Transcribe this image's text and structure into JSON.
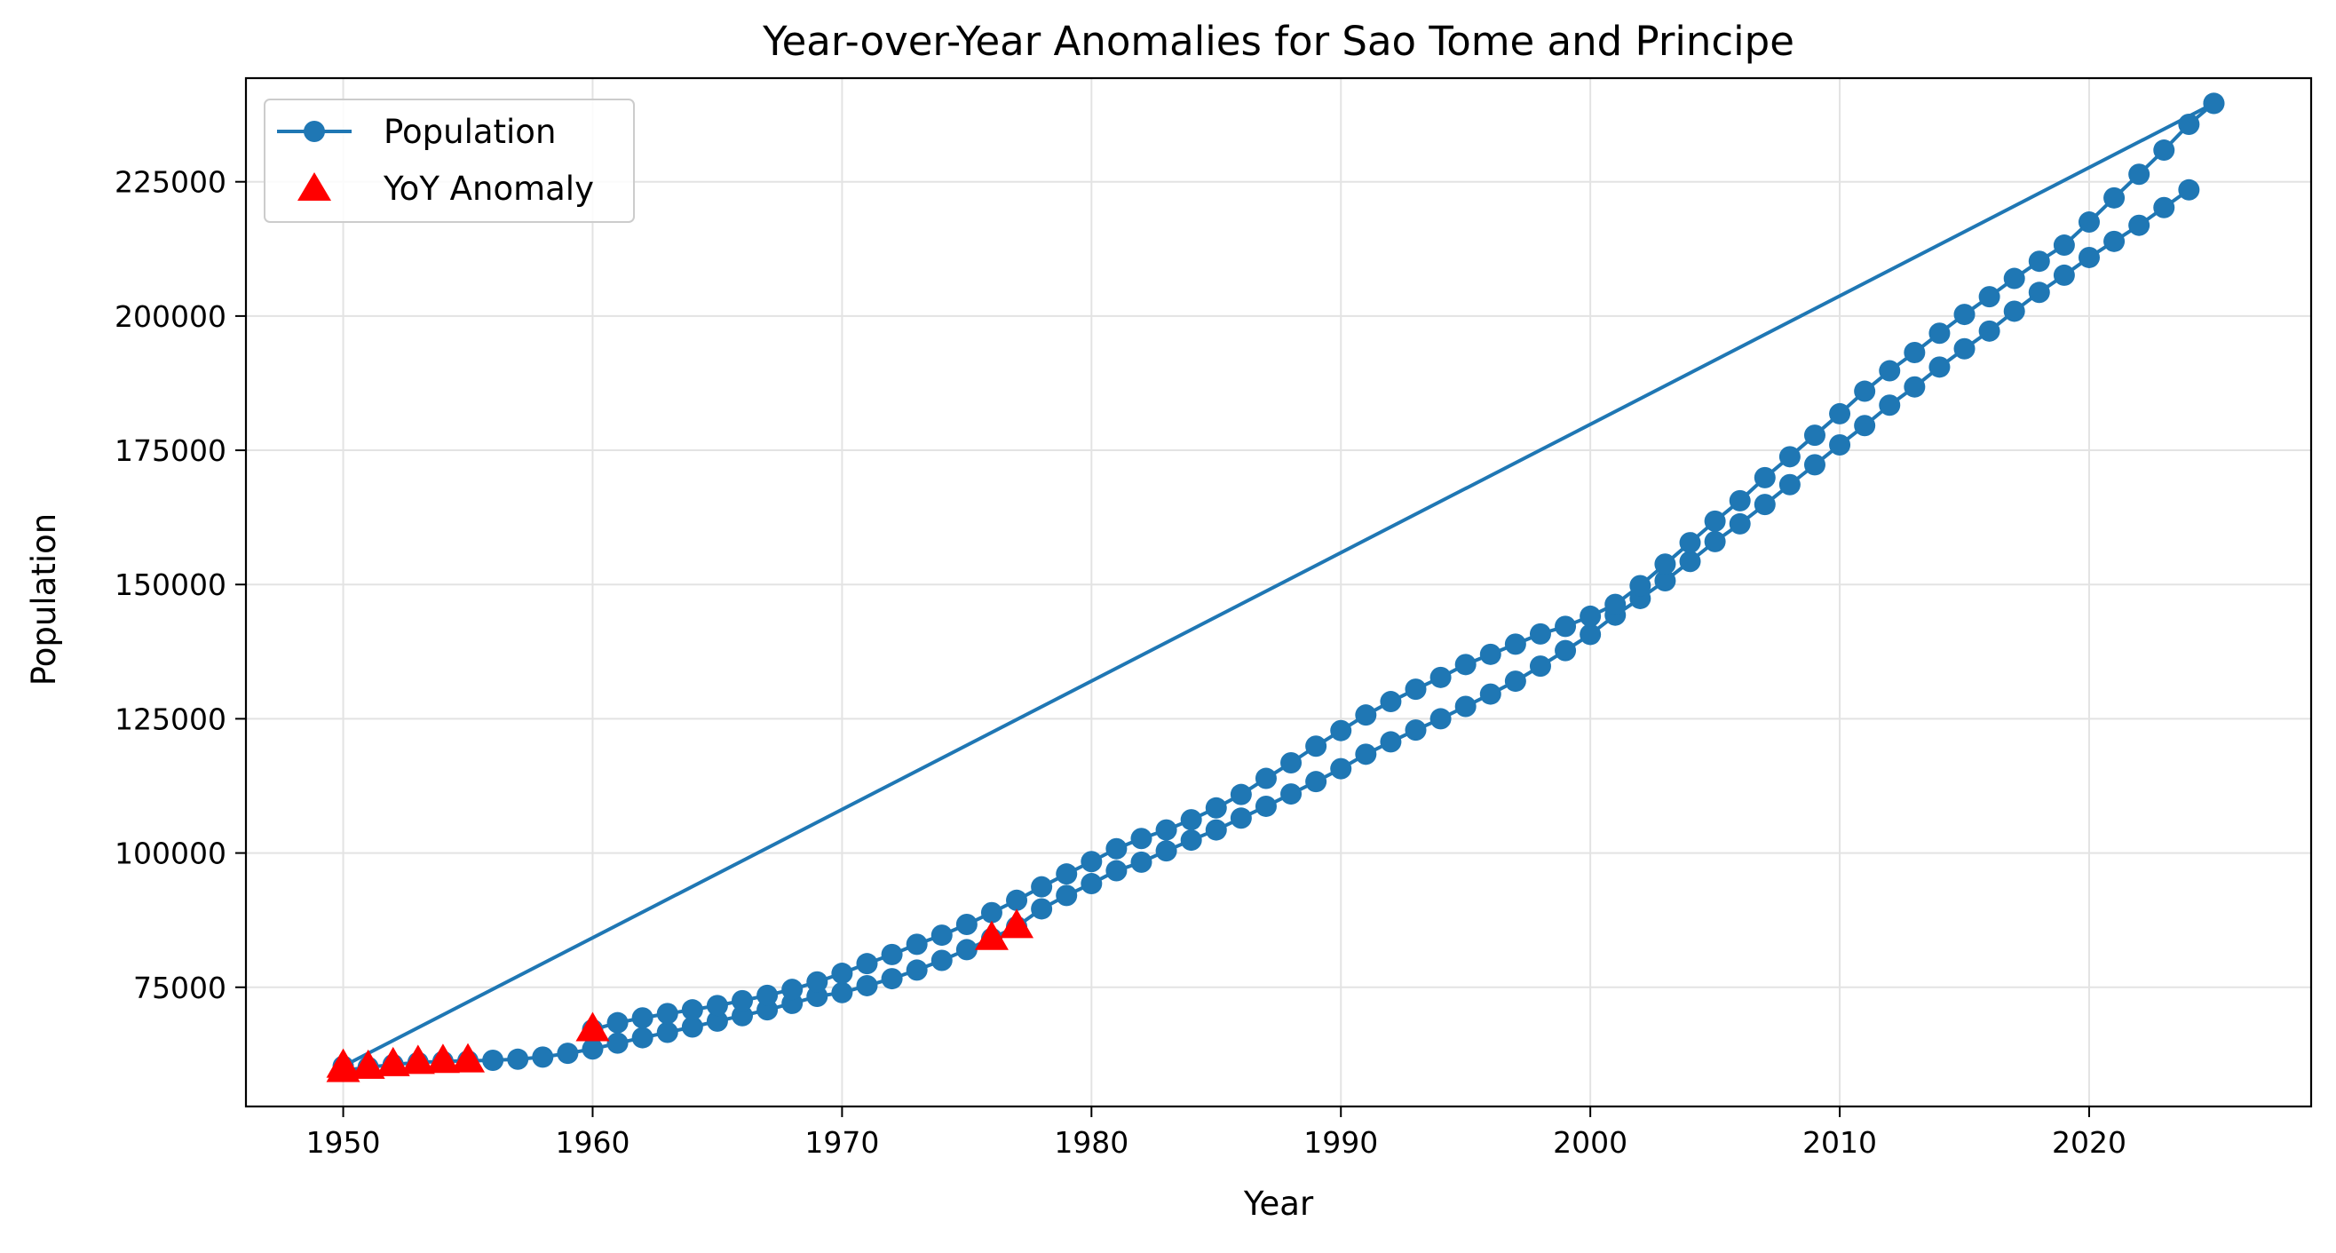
{
  "chart_data": {
    "type": "line",
    "title": "Year-over-Year Anomalies for Sao Tome and Principe",
    "xlabel": "Year",
    "ylabel": "Population",
    "xlim": [
      1946.1,
      2028.9
    ],
    "ylim": [
      52800,
      244300
    ],
    "xticks": [
      1950,
      1960,
      1970,
      1980,
      1990,
      2000,
      2010,
      2020
    ],
    "yticks": [
      75000,
      100000,
      125000,
      150000,
      175000,
      200000,
      225000
    ],
    "grid": true,
    "legend": {
      "placement": "top-left",
      "entries": [
        "Population",
        "YoY Anomaly"
      ]
    },
    "colors": {
      "line": "#1f77b4",
      "anomaly": "#ff0000"
    },
    "series": [
      {
        "name": "Population",
        "marker": "circle",
        "segments": [
          {
            "x": [
              1950,
              1951,
              1952,
              1953,
              1954,
              1955,
              1956,
              1957,
              1958,
              1959,
              1960,
              1961,
              1962,
              1963,
              1964,
              1965,
              1966,
              1967,
              1968,
              1969,
              1970,
              1971,
              1972,
              1973,
              1974,
              1975,
              1976,
              1977,
              1978,
              1979,
              1980,
              1981,
              1982,
              1983,
              1984,
              1985,
              1986,
              1987,
              1988,
              1989,
              1990,
              1991,
              1992,
              1993,
              1994,
              1995,
              1996,
              1997,
              1998,
              1999,
              2000,
              2001,
              2002,
              2003,
              2004,
              2005,
              2006,
              2007,
              2008,
              2009,
              2010,
              2011,
              2012,
              2013,
              2014,
              2015,
              2016,
              2017,
              2018,
              2019,
              2020,
              2021,
              2022,
              2023,
              2024
            ],
            "y": [
              59500,
              60100,
              60600,
              61000,
              61200,
              61300,
              61400,
              61600,
              62000,
              62700,
              63500,
              64600,
              65600,
              66600,
              67600,
              68700,
              69700,
              70800,
              72000,
              73300,
              74000,
              75300,
              76600,
              78200,
              80000,
              82000,
              84100,
              86300,
              89600,
              92100,
              94300,
              96700,
              98300,
              100400,
              102400,
              104300,
              106500,
              108700,
              111000,
              113300,
              115700,
              118400,
              120700,
              122900,
              125000,
              127300,
              129600,
              132000,
              134800,
              137700,
              140700,
              144300,
              147400,
              150700,
              154300,
              158000,
              161300,
              164900,
              168600,
              172300,
              176000,
              179600,
              183400,
              186800,
              190500,
              193900,
              197200,
              200900,
              204400,
              207600,
              210900,
              213900,
              216900,
              220200,
              223500
            ]
          },
          {
            "x": [
              1950,
              2025
            ],
            "y": [
              60300,
              239600
            ]
          },
          {
            "x": [
              1960,
              1961,
              1962,
              1963,
              1964,
              1965,
              1966,
              1967,
              1968,
              1969,
              1970,
              1971,
              1972,
              1973,
              1974,
              1975,
              1976,
              1977,
              1978,
              1979,
              1980,
              1981,
              1982,
              1983,
              1984,
              1985,
              1986,
              1987,
              1988,
              1989,
              1990,
              1991,
              1992,
              1993,
              1994,
              1995,
              1996,
              1997,
              1998,
              1999,
              2000,
              2001,
              2002,
              2003,
              2004,
              2005,
              2006,
              2007,
              2008,
              2009,
              2010,
              2011,
              2012,
              2013,
              2014,
              2015,
              2016,
              2017,
              2018,
              2019,
              2020,
              2021,
              2022,
              2023,
              2024,
              2025
            ],
            "y": [
              67100,
              68400,
              69300,
              70100,
              70800,
              71600,
              72500,
              73500,
              74600,
              76000,
              77600,
              79400,
              81100,
              83000,
              84700,
              86700,
              88900,
              91200,
              93700,
              96100,
              98400,
              100800,
              102700,
              104300,
              106200,
              108400,
              110900,
              113900,
              116800,
              119900,
              122800,
              125700,
              128200,
              130500,
              132700,
              135100,
              137000,
              138900,
              140800,
              142200,
              144100,
              146300,
              149800,
              153800,
              157800,
              161800,
              165600,
              169900,
              173800,
              177800,
              181800,
              186000,
              189800,
              193200,
              196800,
              200300,
              203600,
              207000,
              210200,
              213200,
              217500,
              222000,
              226400,
              230900,
              235700,
              239600
            ]
          }
        ]
      },
      {
        "name": "YoY Anomaly",
        "marker": "triangle",
        "x": [
          1950,
          1950,
          1951,
          1952,
          1953,
          1954,
          1955,
          1960,
          1976,
          1977
        ],
        "y": [
          59500,
          60300,
          60100,
          60600,
          61000,
          61200,
          61300,
          67100,
          84100,
          86300
        ]
      }
    ]
  }
}
